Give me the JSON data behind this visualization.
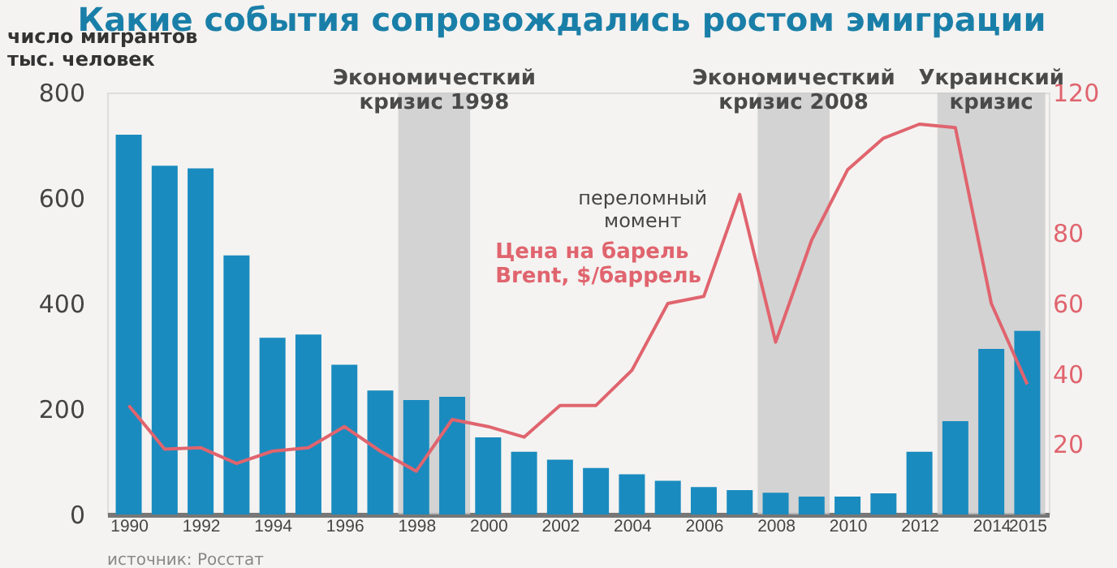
{
  "chart_data": {
    "type": "bar",
    "title": "Какие события сопровождались ростом эмиграции",
    "ylabel": "число мигрантов\nтыс. человек",
    "x": [
      1990,
      1991,
      1992,
      1993,
      1994,
      1995,
      1996,
      1997,
      1998,
      1999,
      2000,
      2001,
      2002,
      2003,
      2004,
      2005,
      2006,
      2007,
      2008,
      2009,
      2010,
      2011,
      2012,
      2013,
      2014,
      2015
    ],
    "xlim": [
      1989.4,
      2015.6
    ],
    "xticks": [
      1990,
      1992,
      1994,
      1996,
      1998,
      2000,
      2002,
      2004,
      2006,
      2008,
      2010,
      2012,
      2014,
      2015
    ],
    "ylim": [
      0,
      800
    ],
    "yticks": [
      0,
      200,
      400,
      600,
      800
    ],
    "y2lim": [
      0,
      120
    ],
    "y2ticks": [
      20,
      40,
      60,
      80,
      120
    ],
    "series": [
      {
        "color": "#1a8bbf",
        "values": [
          720,
          661,
          656,
          491,
          335,
          341,
          284,
          235,
          217,
          223,
          146,
          119,
          104,
          88,
          76,
          64,
          52,
          46,
          41,
          34,
          34,
          40,
          119,
          177,
          314,
          348
        ]
      },
      {
        "type": "line",
        "axis": "y2",
        "name": "Цена на барель Brent, $/баррель",
        "color": "#e0646e",
        "values": [
          31,
          18.6,
          19,
          14.5,
          18,
          19,
          25,
          18,
          12.3,
          27,
          25,
          22,
          31,
          31,
          41,
          60,
          62,
          91,
          49,
          78,
          98,
          107,
          111,
          110,
          60,
          37
        ]
      }
    ],
    "bands": [
      {
        "axis": "x",
        "from": 1997.5,
        "to": 1999.5,
        "label": "Экономичесткий\nкризис 1998",
        "color": "#c8c8c8"
      },
      {
        "axis": "x",
        "from": 2007.5,
        "to": 2009.5,
        "label": "Экономичесткий\nкризис 2008",
        "color": "#c8c8c8"
      },
      {
        "axis": "x",
        "from": 2012.5,
        "to": 2015.5,
        "label": "Украинский\nкризис",
        "color": "#c8c8c8"
      }
    ],
    "annotations": [
      "переломный\nмомент",
      "источник: Росстат"
    ],
    "grid": false,
    "marker": "none",
    "line_style": "solid"
  }
}
